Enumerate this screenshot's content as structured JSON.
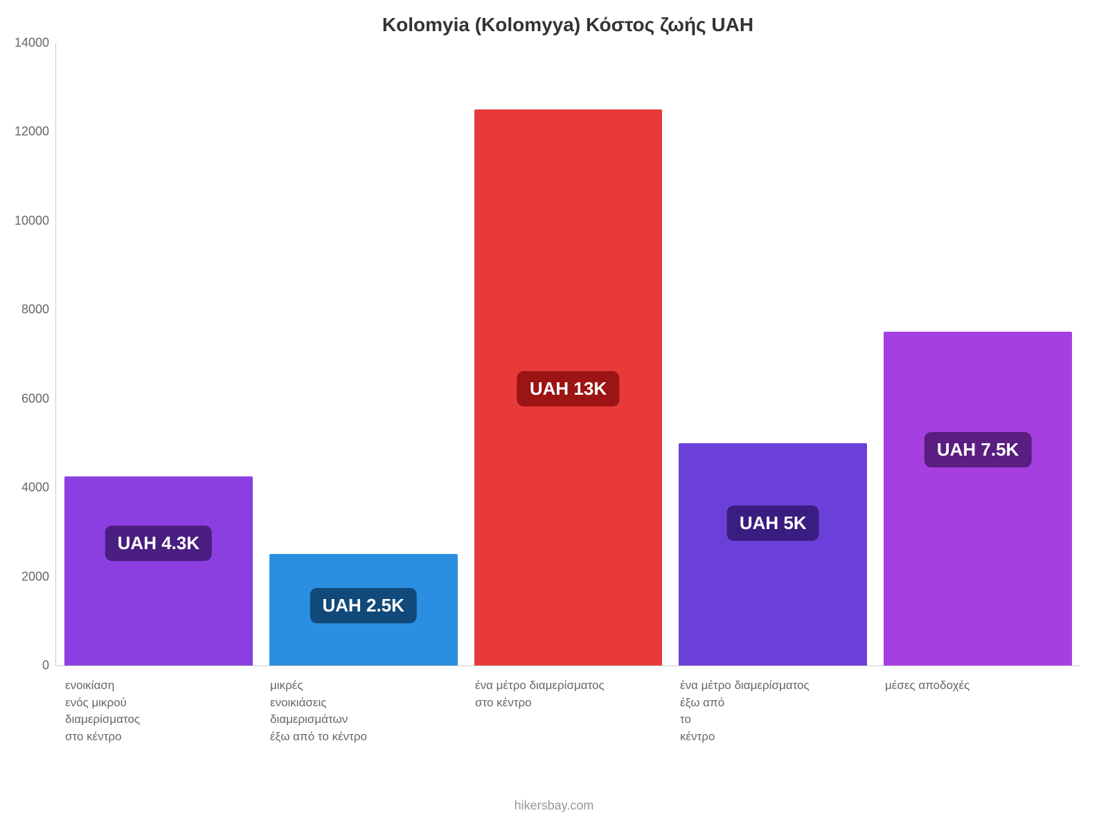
{
  "chart": {
    "type": "bar",
    "title": "Kolomyia (Kolomyya) Κόστος ζωής UAH",
    "title_fontsize": 28,
    "title_color": "#333333",
    "background_color": "#ffffff",
    "axis_color": "#cccccc",
    "tick_color": "#666666",
    "tick_fontsize": 18,
    "xlabel_fontsize": 17,
    "xlabel_color": "#666666",
    "ylim": [
      0,
      14000
    ],
    "yticks": [
      0,
      2000,
      4000,
      6000,
      8000,
      10000,
      12000,
      14000
    ],
    "bar_width_ratio": 0.85,
    "bar_label_fontsize": 26,
    "bar_label_radius": 10,
    "categories": [
      "ενοικίαση ενός μικρού διαμερίσματος στο κέντρο",
      "μικρές ενοικιάσεις διαμερισμάτων έξω από το κέντρο",
      "ένα μέτρο διαμερίσματος στο κέντρο",
      "ένα μέτρο διαμερίσματος έξω από το κέντρο",
      "μέσες αποδοχές"
    ],
    "category_wrapped": [
      [
        "ενοικίαση",
        "ενός μικρού",
        "διαμερίσματος",
        "στο κέντρο"
      ],
      [
        "μικρές",
        "ενοικιάσεις",
        "διαμερισμάτων",
        "έξω από το κέντρο"
      ],
      [
        "ένα μέτρο διαμερίσματος",
        "στο κέντρο"
      ],
      [
        "ένα μέτρο διαμερίσματος",
        "έξω από",
        "το",
        "κέντρο"
      ],
      [
        "μέσες αποδοχές"
      ]
    ],
    "values": [
      4250,
      2500,
      12500,
      5000,
      7500
    ],
    "value_labels": [
      "UAH 4.3K",
      "UAH 2.5K",
      "UAH 13K",
      "UAH 5K",
      "UAH 7.5K"
    ],
    "bar_colors": [
      "#8b3fe0",
      "#2a8fe0",
      "#e83a3a",
      "#6b3fd9",
      "#a63fe0"
    ],
    "label_bg_colors": [
      "#4a1d80",
      "#114a7a",
      "#9c1414",
      "#3a1d80",
      "#5a1d80"
    ],
    "label_vertical_offset_pct": [
      26,
      30,
      47,
      28,
      30
    ]
  },
  "attribution": "hikersbay.com",
  "attribution_color": "#999999",
  "attribution_fontsize": 18
}
